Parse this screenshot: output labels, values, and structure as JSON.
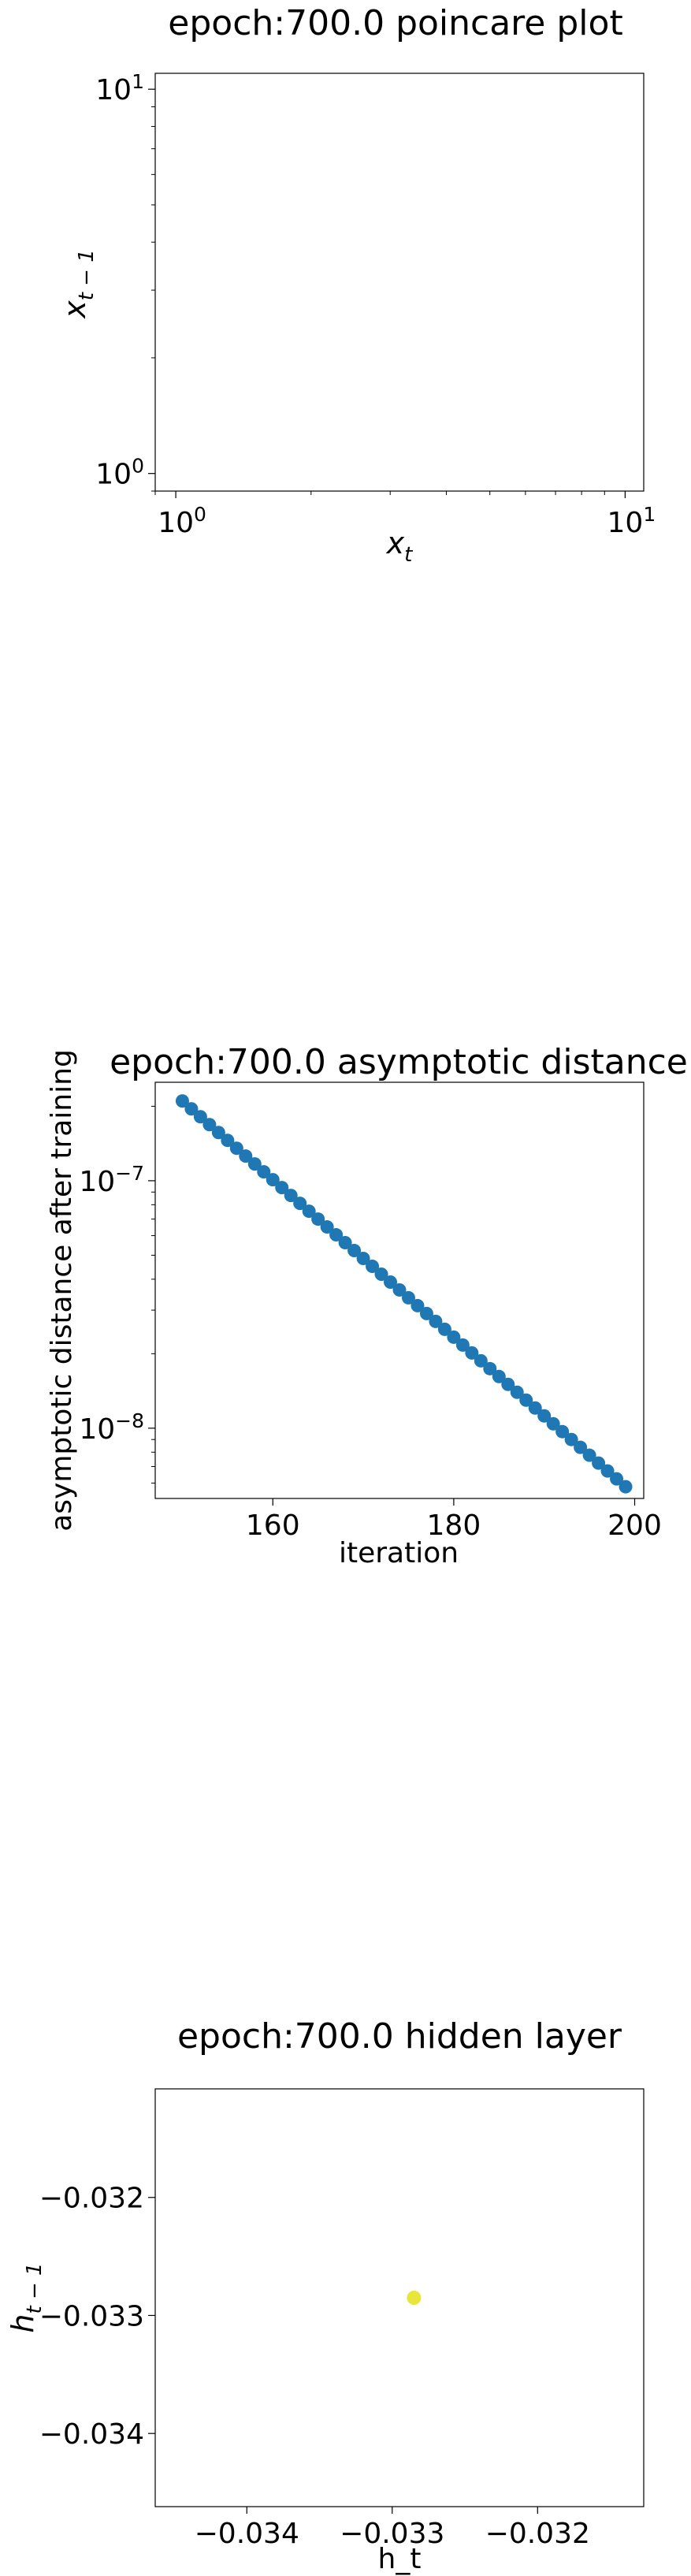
{
  "chart_data": [
    {
      "type": "scatter",
      "title": "epoch:700.0 poincare plot",
      "xlabel": "x_t",
      "ylabel": "x_{t-1}",
      "xscale": "log",
      "yscale": "log",
      "xlim": [
        0.9,
        11
      ],
      "ylim": [
        0.9,
        11
      ],
      "xticks": [
        {
          "value": 1,
          "base": "10",
          "exp": "0"
        },
        {
          "value": 10,
          "base": "10",
          "exp": "1"
        }
      ],
      "yticks": [
        {
          "value": 1,
          "base": "10",
          "exp": "0"
        },
        {
          "value": 10,
          "base": "10",
          "exp": "1"
        }
      ],
      "points": []
    },
    {
      "type": "scatter",
      "title": "epoch:700.0 asymptotic distance",
      "xlabel": "iteration",
      "ylabel": "asymptotic distance after training",
      "yscale": "log",
      "xlim": [
        147,
        201
      ],
      "ylim": [
        5.2e-09,
        2.5e-07
      ],
      "xticks": [
        160,
        180,
        200
      ],
      "yticks": [
        {
          "value": 1e-07,
          "base": "10",
          "exp": "−7"
        },
        {
          "value": 1e-08,
          "base": "10",
          "exp": "−8"
        }
      ],
      "color": "#1f77b4",
      "x": [
        150,
        151,
        152,
        153,
        154,
        155,
        156,
        157,
        158,
        159,
        160,
        161,
        162,
        163,
        164,
        165,
        166,
        167,
        168,
        169,
        170,
        171,
        172,
        173,
        174,
        175,
        176,
        177,
        178,
        179,
        180,
        181,
        182,
        183,
        184,
        185,
        186,
        187,
        188,
        189,
        190,
        191,
        192,
        193,
        194,
        195,
        196,
        197,
        198,
        199
      ],
      "y_start": 2.1e-07,
      "y_end": 5.8e-09
    },
    {
      "type": "scatter",
      "title": "epoch:700.0 hidden layer",
      "xlabel": "h_t",
      "ylabel": "h_{t-1}",
      "xlim": [
        -0.03463,
        -0.03127
      ],
      "ylim": [
        -0.03462,
        -0.03108
      ],
      "xticks": [
        -0.034,
        -0.033,
        -0.032
      ],
      "xtick_labels": [
        "−0.034",
        "−0.033",
        "−0.032"
      ],
      "yticks": [
        -0.032,
        -0.033,
        -0.034
      ],
      "ytick_labels": [
        "−0.032",
        "−0.033",
        "−0.034"
      ],
      "color": "#e8e63a",
      "points": [
        {
          "x": -0.03285,
          "y": -0.03285
        }
      ]
    }
  ]
}
